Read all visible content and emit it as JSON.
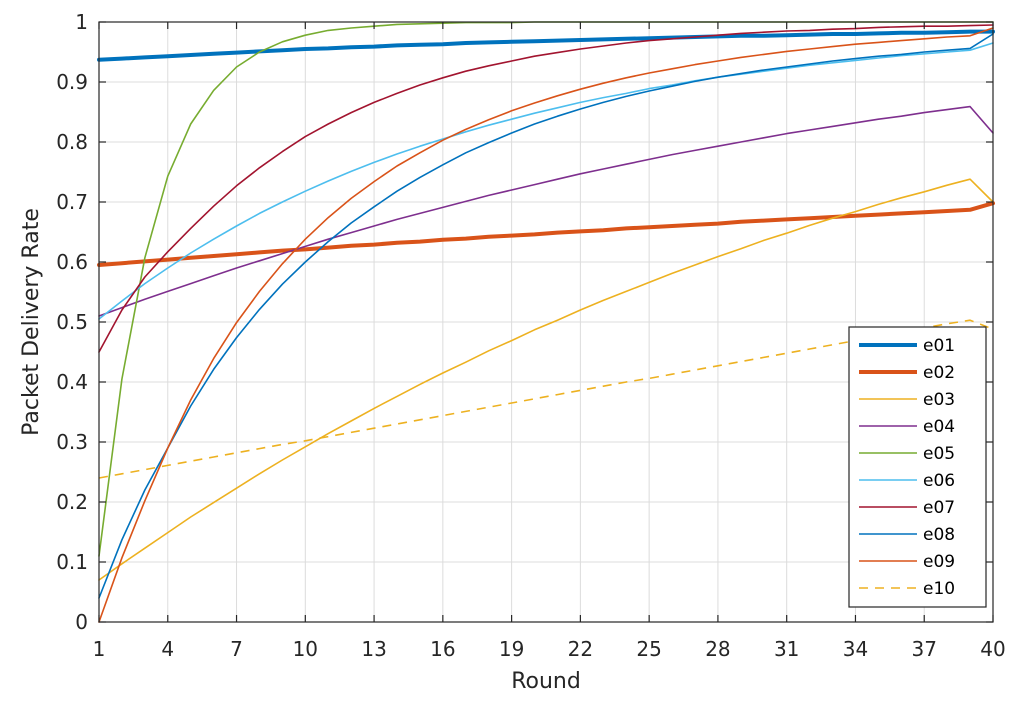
{
  "chart_data": {
    "type": "line",
    "title": "",
    "xlabel": "Round",
    "ylabel": "Packet Delivery Rate",
    "xlim": [
      1,
      40
    ],
    "ylim": [
      0,
      1
    ],
    "xticks": [
      1,
      4,
      7,
      10,
      13,
      16,
      19,
      22,
      25,
      28,
      31,
      34,
      37,
      40
    ],
    "yticks": [
      0,
      0.1,
      0.2,
      0.3,
      0.4,
      0.5,
      0.6,
      0.7,
      0.8,
      0.9,
      1
    ],
    "ytick_labels": [
      "0",
      "0.1",
      "0.2",
      "0.3",
      "0.4",
      "0.5",
      "0.6",
      "0.7",
      "0.8",
      "0.9",
      "1"
    ],
    "grid": true,
    "legend_position": "bottom-right",
    "x": [
      1,
      2,
      3,
      4,
      5,
      6,
      7,
      8,
      9,
      10,
      11,
      12,
      13,
      14,
      15,
      16,
      17,
      18,
      19,
      20,
      21,
      22,
      23,
      24,
      25,
      26,
      27,
      28,
      29,
      30,
      31,
      32,
      33,
      34,
      35,
      36,
      37,
      38,
      39,
      40
    ],
    "series": [
      {
        "name": "e01",
        "color": "#0072BD",
        "width": 4,
        "dash": "",
        "values": [
          0.937,
          0.939,
          0.941,
          0.943,
          0.945,
          0.947,
          0.949,
          0.951,
          0.953,
          0.955,
          0.956,
          0.958,
          0.959,
          0.961,
          0.962,
          0.963,
          0.965,
          0.966,
          0.967,
          0.968,
          0.969,
          0.97,
          0.971,
          0.972,
          0.973,
          0.974,
          0.975,
          0.976,
          0.977,
          0.977,
          0.978,
          0.979,
          0.98,
          0.98,
          0.981,
          0.982,
          0.982,
          0.983,
          0.984,
          0.984
        ]
      },
      {
        "name": "e02",
        "color": "#D95319",
        "width": 4,
        "dash": "",
        "values": [
          0.595,
          0.598,
          0.601,
          0.604,
          0.607,
          0.61,
          0.613,
          0.616,
          0.619,
          0.621,
          0.624,
          0.627,
          0.629,
          0.632,
          0.634,
          0.637,
          0.639,
          0.642,
          0.644,
          0.646,
          0.649,
          0.651,
          0.653,
          0.656,
          0.658,
          0.66,
          0.662,
          0.664,
          0.667,
          0.669,
          0.671,
          0.673,
          0.675,
          0.677,
          0.679,
          0.681,
          0.683,
          0.685,
          0.687,
          0.698
        ]
      },
      {
        "name": "e03",
        "color": "#EDB120",
        "width": 1.6,
        "dash": "",
        "values": [
          0.07,
          0.097,
          0.123,
          0.149,
          0.175,
          0.199,
          0.223,
          0.247,
          0.27,
          0.292,
          0.314,
          0.335,
          0.356,
          0.376,
          0.396,
          0.415,
          0.433,
          0.452,
          0.469,
          0.487,
          0.503,
          0.52,
          0.536,
          0.551,
          0.566,
          0.581,
          0.595,
          0.609,
          0.622,
          0.636,
          0.648,
          0.661,
          0.673,
          0.684,
          0.696,
          0.707,
          0.717,
          0.728,
          0.738,
          0.7
        ]
      },
      {
        "name": "e04",
        "color": "#7E2F8E",
        "width": 1.6,
        "dash": "",
        "values": [
          0.51,
          0.524,
          0.538,
          0.551,
          0.564,
          0.577,
          0.59,
          0.602,
          0.614,
          0.626,
          0.638,
          0.649,
          0.66,
          0.671,
          0.681,
          0.691,
          0.701,
          0.711,
          0.72,
          0.729,
          0.738,
          0.747,
          0.755,
          0.763,
          0.771,
          0.779,
          0.786,
          0.793,
          0.8,
          0.807,
          0.814,
          0.82,
          0.826,
          0.832,
          0.838,
          0.843,
          0.849,
          0.854,
          0.859,
          0.815
        ]
      },
      {
        "name": "e05",
        "color": "#77AC30",
        "width": 1.6,
        "dash": "",
        "values": [
          0.11,
          0.405,
          0.607,
          0.743,
          0.83,
          0.886,
          0.925,
          0.95,
          0.967,
          0.978,
          0.986,
          0.99,
          0.993,
          0.996,
          0.997,
          0.998,
          0.999,
          0.999,
          0.999,
          1.0,
          1.0,
          1.0,
          1.0,
          1.0,
          1.0,
          1.0,
          1.0,
          1.0,
          1.0,
          1.0,
          1.0,
          1.0,
          1.0,
          1.0,
          1.0,
          1.0,
          1.0,
          1.0,
          1.0,
          1.0
        ]
      },
      {
        "name": "e06",
        "color": "#4DBEEE",
        "width": 1.6,
        "dash": "",
        "values": [
          0.505,
          0.535,
          0.564,
          0.59,
          0.615,
          0.638,
          0.66,
          0.681,
          0.7,
          0.718,
          0.735,
          0.751,
          0.766,
          0.78,
          0.793,
          0.805,
          0.817,
          0.828,
          0.838,
          0.848,
          0.857,
          0.866,
          0.874,
          0.881,
          0.889,
          0.895,
          0.902,
          0.908,
          0.913,
          0.918,
          0.923,
          0.928,
          0.932,
          0.936,
          0.94,
          0.944,
          0.947,
          0.95,
          0.953,
          0.965
        ]
      },
      {
        "name": "e07",
        "color": "#A2142F",
        "width": 1.6,
        "dash": "",
        "values": [
          0.45,
          0.52,
          0.575,
          0.617,
          0.656,
          0.693,
          0.727,
          0.757,
          0.784,
          0.809,
          0.83,
          0.849,
          0.866,
          0.881,
          0.895,
          0.907,
          0.918,
          0.927,
          0.935,
          0.943,
          0.949,
          0.955,
          0.96,
          0.965,
          0.969,
          0.972,
          0.975,
          0.978,
          0.981,
          0.983,
          0.985,
          0.986,
          0.988,
          0.989,
          0.991,
          0.992,
          0.993,
          0.993,
          0.994,
          0.995
        ]
      },
      {
        "name": "e08",
        "color": "#0072BD",
        "width": 1.6,
        "dash": "",
        "values": [
          0.04,
          0.137,
          0.22,
          0.29,
          0.36,
          0.421,
          0.474,
          0.521,
          0.563,
          0.6,
          0.634,
          0.665,
          0.692,
          0.718,
          0.741,
          0.762,
          0.782,
          0.799,
          0.815,
          0.83,
          0.843,
          0.855,
          0.866,
          0.876,
          0.885,
          0.893,
          0.901,
          0.908,
          0.914,
          0.92,
          0.925,
          0.93,
          0.935,
          0.939,
          0.943,
          0.946,
          0.95,
          0.953,
          0.956,
          0.98
        ]
      },
      {
        "name": "e09",
        "color": "#D95319",
        "width": 1.6,
        "dash": "",
        "values": [
          0.0,
          0.107,
          0.202,
          0.29,
          0.37,
          0.439,
          0.499,
          0.551,
          0.597,
          0.638,
          0.674,
          0.706,
          0.734,
          0.76,
          0.782,
          0.803,
          0.821,
          0.837,
          0.852,
          0.865,
          0.877,
          0.888,
          0.898,
          0.907,
          0.915,
          0.922,
          0.929,
          0.935,
          0.941,
          0.946,
          0.951,
          0.955,
          0.959,
          0.963,
          0.966,
          0.969,
          0.972,
          0.975,
          0.977,
          0.99
        ]
      },
      {
        "name": "e10",
        "color": "#EDB120",
        "width": 1.6,
        "dash": "9 7",
        "values": [
          0.24,
          0.247,
          0.254,
          0.261,
          0.268,
          0.275,
          0.282,
          0.289,
          0.296,
          0.302,
          0.309,
          0.316,
          0.323,
          0.33,
          0.337,
          0.344,
          0.351,
          0.358,
          0.365,
          0.372,
          0.379,
          0.386,
          0.393,
          0.4,
          0.406,
          0.413,
          0.42,
          0.427,
          0.434,
          0.441,
          0.448,
          0.455,
          0.462,
          0.469,
          0.476,
          0.483,
          0.49,
          0.497,
          0.503,
          0.488
        ]
      }
    ]
  }
}
